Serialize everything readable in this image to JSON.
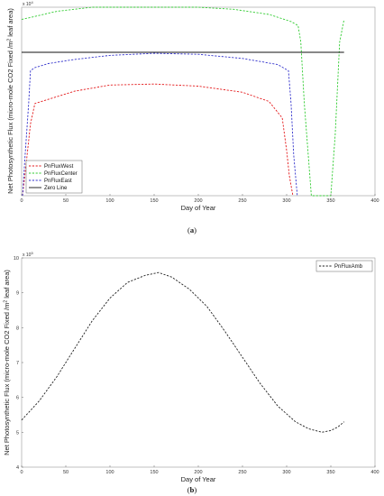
{
  "chart_data": [
    {
      "type": "line",
      "caption_open": "(",
      "caption_letter": "a",
      "caption_close": ")",
      "xlabel": "Day of Year",
      "ylabel": "Net Photosynthetic Flux (micro-mole CO2 Fixed /m",
      "ylabel_sup": "2",
      "ylabel_tail": " leaf area)",
      "exponent_base": "x 10",
      "exponent_power": "4",
      "xlim": [
        0,
        400
      ],
      "ylim": [
        -7,
        2.2
      ],
      "xticks": [
        "0",
        "50",
        "100",
        "150",
        "200",
        "250",
        "300",
        "350",
        "400"
      ],
      "legend_position": "lower-left",
      "series": [
        {
          "name": "PnFluxWest",
          "color": "#e41a1c",
          "style": "dashed",
          "x": [
            1,
            5,
            10,
            15,
            30,
            60,
            100,
            150,
            200,
            250,
            280,
            295,
            300,
            303,
            307
          ],
          "y": [
            -7,
            -5.5,
            -3.5,
            -2.5,
            -2.3,
            -1.9,
            -1.6,
            -1.55,
            -1.65,
            -1.95,
            -2.4,
            -3.2,
            -4.8,
            -6,
            -7
          ]
        },
        {
          "name": "PnFluxCenter",
          "color": "#33cc33",
          "style": "dashed",
          "x": [
            0,
            15,
            40,
            80,
            120,
            160,
            200,
            240,
            280,
            305,
            313,
            316,
            320,
            328,
            350,
            355,
            360,
            365
          ],
          "y": [
            1.6,
            1.75,
            2,
            2.2,
            2.3,
            2.3,
            2.25,
            2.1,
            1.85,
            1.5,
            1.3,
            0.5,
            -2.5,
            -7,
            -7,
            -4,
            0.5,
            1.6
          ]
        },
        {
          "name": "PnFluxEast",
          "color": "#3333cc",
          "style": "dashed",
          "x": [
            1,
            4,
            8,
            10,
            15,
            30,
            60,
            100,
            150,
            200,
            250,
            290,
            302,
            305,
            308,
            312
          ],
          "y": [
            -7,
            -5,
            -2.5,
            -0.9,
            -0.75,
            -0.55,
            -0.35,
            -0.15,
            -0.05,
            -0.1,
            -0.3,
            -0.6,
            -0.9,
            -2.5,
            -5,
            -7
          ]
        },
        {
          "name": "Zero Line",
          "color": "#111111",
          "style": "solid",
          "x": [
            0,
            365
          ],
          "y": [
            0,
            0
          ]
        }
      ]
    },
    {
      "type": "line",
      "caption_open": "(",
      "caption_letter": "b",
      "caption_close": ")",
      "xlabel": "Day of Year",
      "ylabel": "Net Photosynthetic Flux (micro-mole CO2 Fixed /m",
      "ylabel_sup": "2",
      "ylabel_tail": " leaf area)",
      "exponent_base": "x 10",
      "exponent_power": "5",
      "xlim": [
        0,
        400
      ],
      "ylim": [
        4,
        10
      ],
      "yticks": [
        "4",
        "5",
        "6",
        "7",
        "8",
        "9",
        "10"
      ],
      "xticks": [
        "0",
        "50",
        "100",
        "150",
        "200",
        "250",
        "300",
        "350",
        "400"
      ],
      "legend_position": "top-right",
      "series": [
        {
          "name": "PnFluxAmb",
          "color": "#222222",
          "style": "dashed",
          "x": [
            0,
            20,
            40,
            60,
            80,
            100,
            120,
            140,
            155,
            170,
            190,
            210,
            230,
            250,
            270,
            290,
            310,
            325,
            340,
            350,
            358,
            365
          ],
          "y": [
            5.35,
            5.9,
            6.6,
            7.4,
            8.2,
            8.85,
            9.3,
            9.5,
            9.58,
            9.45,
            9.1,
            8.6,
            7.9,
            7.15,
            6.4,
            5.75,
            5.3,
            5.1,
            5.0,
            5.05,
            5.15,
            5.3
          ]
        }
      ]
    }
  ]
}
